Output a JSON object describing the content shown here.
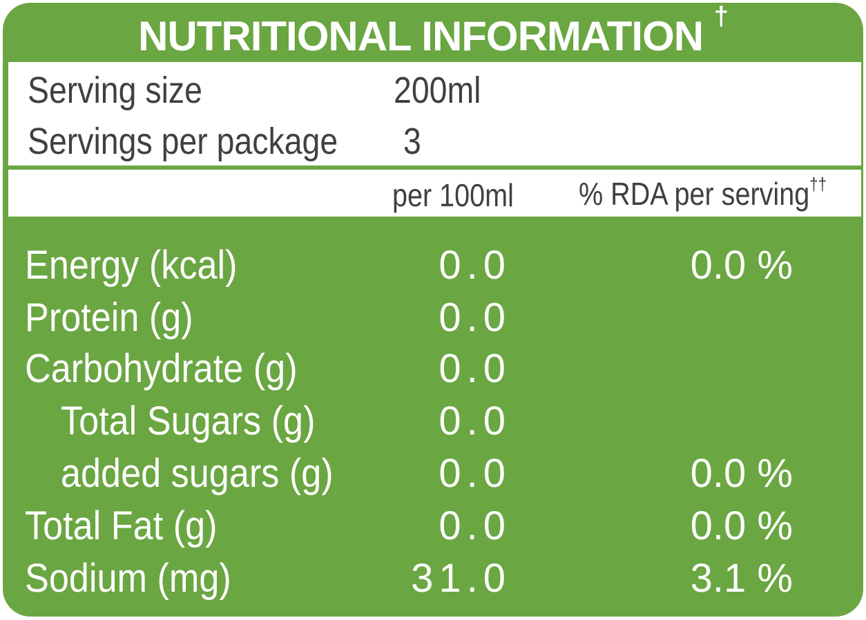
{
  "title": {
    "text": "NUTRITIONAL INFORMATION",
    "mark": "†"
  },
  "serving": {
    "size_label": "Serving size",
    "size_value": "200ml",
    "per_package_label": "Servings per package",
    "per_package_value": "3"
  },
  "columns": {
    "per100": "per 100ml",
    "rda": "% RDA per serving",
    "rda_mark": "††"
  },
  "nutrients": [
    {
      "label": "Energy (kcal)",
      "per100": "0.0",
      "rda": "0.0 %"
    },
    {
      "label": "Protein (g)",
      "per100": "0.0",
      "rda": ""
    },
    {
      "label": "Carbohydrate (g)",
      "per100": "0.0",
      "rda": ""
    },
    {
      "label": "Total Sugars (g)",
      "per100": "0.0",
      "rda": ""
    },
    {
      "label": "added sugars (g)",
      "per100": "0.0",
      "rda": "0.0 %"
    },
    {
      "label": "Total Fat (g)",
      "per100": "0.0",
      "rda": "0.0 %"
    },
    {
      "label": "Sodium (mg)",
      "per100": "31.0",
      "rda": "3.1 %"
    }
  ],
  "colors": {
    "panel_green": "#6aa641",
    "text_gray": "#404040",
    "white": "#ffffff"
  }
}
